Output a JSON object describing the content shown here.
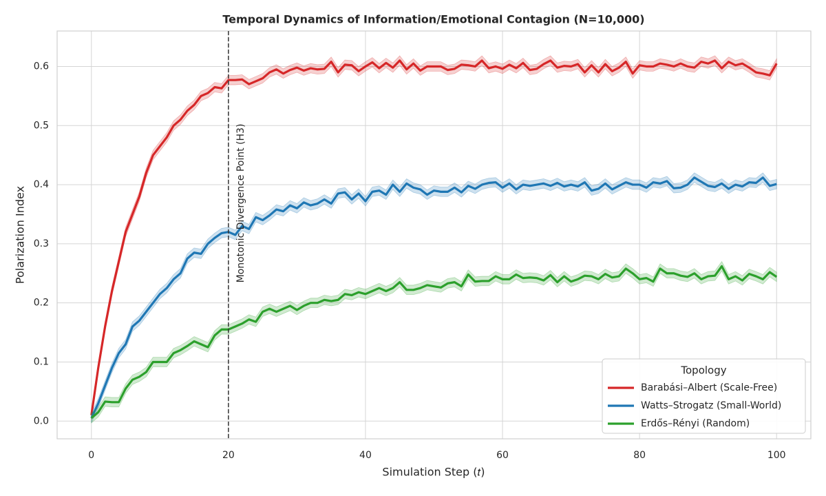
{
  "chart_data": {
    "type": "line",
    "title": "Temporal Dynamics of Information/Emotional Contagion (N=10,000)",
    "xlabel": "Simulation Step (𝑡)",
    "ylabel": "Polarization Index",
    "xlim": [
      -5,
      105
    ],
    "ylim": [
      -0.03,
      0.66
    ],
    "xticks": [
      0,
      20,
      40,
      60,
      80,
      100
    ],
    "yticks": [
      {
        "value": 0,
        "label": "0.0"
      },
      0.1,
      0.2,
      0.3,
      0.4,
      0.5,
      0.6
    ],
    "grid": true,
    "legend": {
      "title": "Topology",
      "loc": "lower right"
    },
    "annotation": {
      "x": 20,
      "label": "Monotonic Divergence Point (H3)"
    },
    "x": [
      0,
      1,
      2,
      3,
      4,
      5,
      6,
      7,
      8,
      9,
      10,
      11,
      12,
      13,
      14,
      15,
      16,
      17,
      18,
      19,
      20,
      21,
      22,
      23,
      24,
      25,
      26,
      27,
      28,
      29,
      30,
      31,
      32,
      33,
      34,
      35,
      36,
      37,
      38,
      39,
      40,
      41,
      42,
      43,
      44,
      45,
      46,
      47,
      48,
      49,
      50,
      51,
      52,
      53,
      54,
      55,
      56,
      57,
      58,
      59,
      60,
      61,
      62,
      63,
      64,
      65,
      66,
      67,
      68,
      69,
      70,
      71,
      72,
      73,
      74,
      75,
      76,
      77,
      78,
      79,
      80,
      81,
      82,
      83,
      84,
      85,
      86,
      87,
      88,
      89,
      90,
      91,
      92,
      93,
      94,
      95,
      96,
      97,
      98,
      99,
      100
    ],
    "series": [
      {
        "name": "Barabási–Albert (Scale-Free)",
        "color": "#d62728",
        "ci": 0.008,
        "values": [
          0.01,
          0.09,
          0.16,
          0.22,
          0.27,
          0.32,
          0.35,
          0.38,
          0.42,
          0.45,
          0.465,
          0.48,
          0.5,
          0.51,
          0.525,
          0.535,
          0.55,
          0.555,
          0.565,
          0.563,
          0.577,
          0.577,
          0.578,
          0.57,
          0.575,
          0.58,
          0.59,
          0.595,
          0.588,
          0.594,
          0.598,
          0.593,
          0.597,
          0.595,
          0.596,
          0.608,
          0.59,
          0.603,
          0.602,
          0.592,
          0.6,
          0.607,
          0.597,
          0.606,
          0.598,
          0.61,
          0.595,
          0.605,
          0.593,
          0.6,
          0.6,
          0.6,
          0.594,
          0.596,
          0.603,
          0.602,
          0.6,
          0.61,
          0.597,
          0.6,
          0.596,
          0.603,
          0.597,
          0.606,
          0.594,
          0.596,
          0.604,
          0.61,
          0.598,
          0.601,
          0.6,
          0.604,
          0.59,
          0.602,
          0.59,
          0.604,
          0.592,
          0.598,
          0.608,
          0.588,
          0.602,
          0.6,
          0.6,
          0.605,
          0.603,
          0.6,
          0.605,
          0.6,
          0.598,
          0.608,
          0.605,
          0.61,
          0.597,
          0.608,
          0.602,
          0.605,
          0.598,
          0.59,
          0.588,
          0.585,
          0.605
        ]
      },
      {
        "name": "Watts–Strogatz (Small-World)",
        "color": "#1f77b4",
        "ci": 0.008,
        "values": [
          0.005,
          0.03,
          0.06,
          0.09,
          0.115,
          0.13,
          0.16,
          0.17,
          0.185,
          0.2,
          0.215,
          0.225,
          0.24,
          0.25,
          0.275,
          0.285,
          0.283,
          0.3,
          0.31,
          0.318,
          0.32,
          0.315,
          0.33,
          0.325,
          0.345,
          0.34,
          0.348,
          0.358,
          0.355,
          0.365,
          0.36,
          0.37,
          0.365,
          0.368,
          0.375,
          0.368,
          0.385,
          0.387,
          0.375,
          0.385,
          0.372,
          0.388,
          0.39,
          0.383,
          0.4,
          0.388,
          0.402,
          0.395,
          0.392,
          0.383,
          0.39,
          0.388,
          0.388,
          0.395,
          0.387,
          0.398,
          0.393,
          0.4,
          0.403,
          0.404,
          0.395,
          0.402,
          0.392,
          0.4,
          0.398,
          0.4,
          0.402,
          0.398,
          0.403,
          0.397,
          0.4,
          0.397,
          0.404,
          0.39,
          0.393,
          0.402,
          0.392,
          0.398,
          0.404,
          0.4,
          0.4,
          0.395,
          0.404,
          0.402,
          0.406,
          0.394,
          0.395,
          0.4,
          0.412,
          0.405,
          0.398,
          0.396,
          0.402,
          0.393,
          0.4,
          0.397,
          0.404,
          0.403,
          0.412,
          0.398,
          0.401
        ]
      },
      {
        "name": "Erdős–Rényi (Random)",
        "color": "#2ca02c",
        "ci": 0.008,
        "values": [
          0.005,
          0.015,
          0.033,
          0.032,
          0.032,
          0.055,
          0.07,
          0.075,
          0.083,
          0.1,
          0.1,
          0.1,
          0.115,
          0.12,
          0.127,
          0.135,
          0.13,
          0.125,
          0.145,
          0.155,
          0.155,
          0.16,
          0.165,
          0.172,
          0.168,
          0.185,
          0.19,
          0.185,
          0.19,
          0.195,
          0.188,
          0.195,
          0.2,
          0.2,
          0.205,
          0.203,
          0.205,
          0.215,
          0.213,
          0.218,
          0.215,
          0.22,
          0.225,
          0.22,
          0.225,
          0.235,
          0.222,
          0.222,
          0.225,
          0.23,
          0.228,
          0.226,
          0.233,
          0.235,
          0.228,
          0.248,
          0.236,
          0.237,
          0.237,
          0.245,
          0.24,
          0.24,
          0.248,
          0.242,
          0.243,
          0.242,
          0.238,
          0.247,
          0.235,
          0.245,
          0.236,
          0.24,
          0.246,
          0.245,
          0.24,
          0.249,
          0.243,
          0.245,
          0.258,
          0.25,
          0.24,
          0.242,
          0.236,
          0.258,
          0.25,
          0.25,
          0.246,
          0.244,
          0.25,
          0.24,
          0.245,
          0.246,
          0.262,
          0.24,
          0.245,
          0.238,
          0.249,
          0.245,
          0.24,
          0.252,
          0.244
        ]
      }
    ]
  }
}
